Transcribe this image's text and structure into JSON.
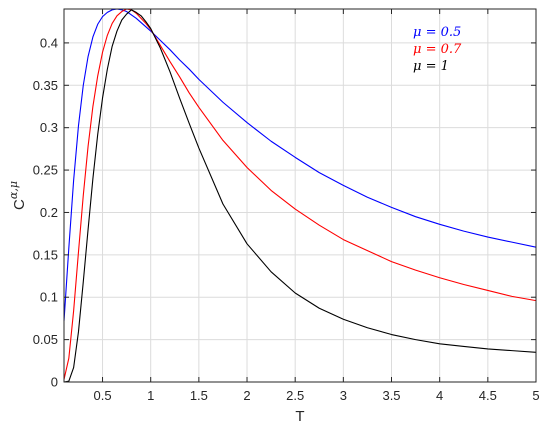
{
  "chart_data": {
    "type": "line",
    "xlabel": "T",
    "ylabel": "C^{α,μ}",
    "ylabel_main": "C",
    "ylabel_sup": "α,μ",
    "xlim": [
      0.1,
      5
    ],
    "ylim": [
      0,
      0.44
    ],
    "xticks": [
      0.5,
      1,
      1.5,
      2,
      2.5,
      3,
      3.5,
      4,
      4.5,
      5
    ],
    "xtick_labels": [
      "0.5",
      "1",
      "1.5",
      "2",
      "2.5",
      "3",
      "3.5",
      "4",
      "4.5",
      "5"
    ],
    "yticks": [
      0,
      0.05,
      0.1,
      0.15,
      0.2,
      0.25,
      0.3,
      0.35,
      0.4
    ],
    "ytick_labels": [
      "0",
      "0.05",
      "0.1",
      "0.15",
      "0.2",
      "0.25",
      "0.3",
      "0.35",
      "0.4"
    ],
    "grid": true,
    "legend_position": "top-right",
    "series": [
      {
        "name": "μ = 0.5",
        "color": "#0000ff",
        "x": [
          0.1,
          0.15,
          0.2,
          0.25,
          0.3,
          0.35,
          0.4,
          0.45,
          0.5,
          0.55,
          0.6,
          0.65,
          0.7,
          0.75,
          0.8,
          0.85,
          0.9,
          0.95,
          1.0,
          1.1,
          1.2,
          1.3,
          1.4,
          1.5,
          1.75,
          2.0,
          2.25,
          2.5,
          2.75,
          3.0,
          3.25,
          3.5,
          3.75,
          4.0,
          4.25,
          4.5,
          4.75,
          5.0
        ],
        "y": [
          0.072,
          0.158,
          0.238,
          0.302,
          0.35,
          0.384,
          0.407,
          0.422,
          0.431,
          0.436,
          0.439,
          0.44,
          0.439,
          0.437,
          0.433,
          0.429,
          0.424,
          0.419,
          0.414,
          0.403,
          0.392,
          0.38,
          0.369,
          0.357,
          0.33,
          0.306,
          0.284,
          0.265,
          0.247,
          0.232,
          0.218,
          0.206,
          0.195,
          0.186,
          0.178,
          0.171,
          0.165,
          0.159
        ]
      },
      {
        "name": "μ = 0.7",
        "color": "#ff0000",
        "x": [
          0.1,
          0.15,
          0.2,
          0.25,
          0.3,
          0.35,
          0.4,
          0.45,
          0.5,
          0.55,
          0.6,
          0.65,
          0.7,
          0.75,
          0.8,
          0.85,
          0.9,
          0.95,
          1.0,
          1.1,
          1.2,
          1.3,
          1.4,
          1.5,
          1.75,
          2.0,
          2.25,
          2.5,
          2.75,
          3.0,
          3.25,
          3.5,
          3.75,
          4.0,
          4.25,
          4.5,
          4.75,
          5.0
        ],
        "y": [
          0.003,
          0.028,
          0.084,
          0.153,
          0.22,
          0.278,
          0.325,
          0.361,
          0.389,
          0.409,
          0.423,
          0.432,
          0.437,
          0.44,
          0.439,
          0.435,
          0.429,
          0.423,
          0.416,
          0.397,
          0.378,
          0.36,
          0.341,
          0.324,
          0.285,
          0.253,
          0.226,
          0.204,
          0.185,
          0.168,
          0.155,
          0.142,
          0.132,
          0.123,
          0.115,
          0.108,
          0.101,
          0.096
        ]
      },
      {
        "name": "μ = 1",
        "color": "#000000",
        "x": [
          0.1,
          0.15,
          0.2,
          0.25,
          0.3,
          0.35,
          0.4,
          0.45,
          0.5,
          0.55,
          0.6,
          0.65,
          0.7,
          0.75,
          0.8,
          0.85,
          0.9,
          0.95,
          1.0,
          1.1,
          1.2,
          1.3,
          1.4,
          1.5,
          1.75,
          2.0,
          2.25,
          2.5,
          2.75,
          3.0,
          3.25,
          3.5,
          3.75,
          4.0,
          4.25,
          4.5,
          4.75,
          5.0
        ],
        "y": [
          0.0,
          0.001,
          0.017,
          0.059,
          0.118,
          0.18,
          0.24,
          0.292,
          0.335,
          0.369,
          0.396,
          0.414,
          0.427,
          0.434,
          0.439,
          0.436,
          0.432,
          0.425,
          0.417,
          0.394,
          0.366,
          0.335,
          0.305,
          0.276,
          0.21,
          0.163,
          0.13,
          0.105,
          0.087,
          0.074,
          0.064,
          0.056,
          0.05,
          0.045,
          0.042,
          0.039,
          0.037,
          0.035
        ]
      }
    ]
  }
}
